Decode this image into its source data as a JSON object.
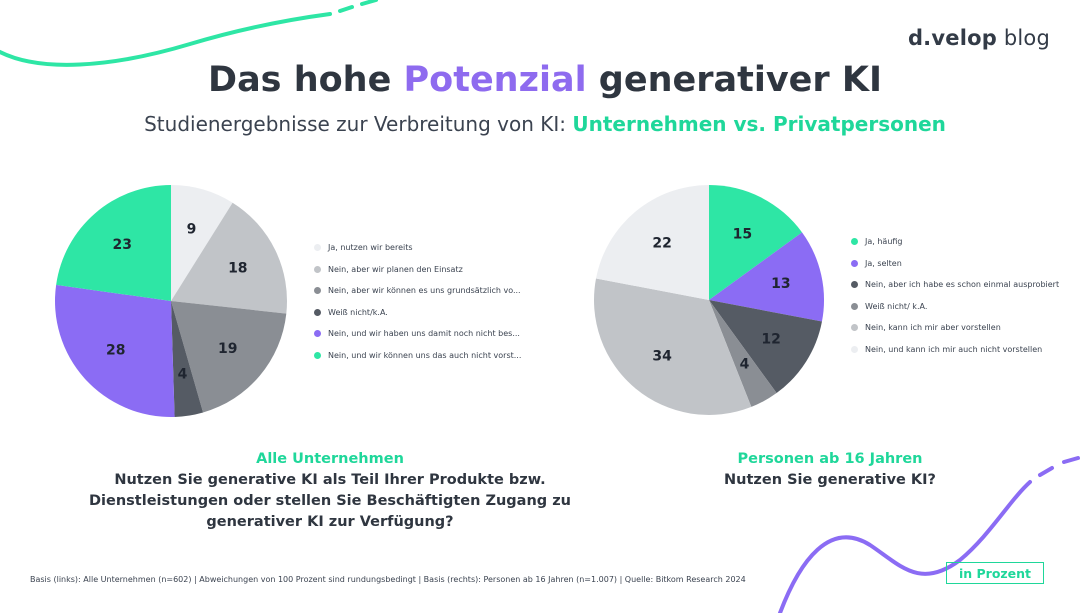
{
  "brand": {
    "name": "d.velop",
    "suffix": "blog"
  },
  "title": {
    "before": "Das hohe ",
    "accent": "Potenzial",
    "after": " generativer KI"
  },
  "subtitle": {
    "before": "Studienergebnisse zur Verbreitung von KI: ",
    "accent": "Unternehmen vs. Privatpersonen"
  },
  "colors": {
    "green": "#2ee6a5",
    "purple": "#8b6cf4",
    "light_gray": "#eceef1",
    "mid_gray": "#c1c4c8",
    "dark_gray": "#8a8e94",
    "charcoal": "#555b64",
    "accent_text": "#1fd79a",
    "title_accent": "#8e6bef"
  },
  "chart_data": [
    {
      "type": "pie",
      "title": "Alle Unternehmen",
      "question": "Nutzen Sie generative KI als Teil Ihrer Produkte bzw. Dienstleistungen oder stellen Sie Beschäftigten Zugang zu generativer KI zur Verfügung?",
      "unit": "in Prozent",
      "slices": [
        {
          "label": "Ja, nutzen wir bereits",
          "value": 9,
          "color": "#eceef1"
        },
        {
          "label": "Nein, aber wir planen den Einsatz",
          "value": 18,
          "color": "#c1c4c8"
        },
        {
          "label": "Nein, aber wir können es uns grundsätzlich vo...",
          "value": 19,
          "color": "#8a8e94"
        },
        {
          "label": "Weiß nicht/k.A.",
          "value": 4,
          "color": "#555b64"
        },
        {
          "label": "Nein, und wir haben uns damit noch nicht bes...",
          "value": 28,
          "color": "#8b6cf4"
        },
        {
          "label": "Nein, und wir können uns das auch nicht vorst...",
          "value": 23,
          "color": "#2ee6a5"
        }
      ],
      "legend_placement": "right"
    },
    {
      "type": "pie",
      "title": "Personen ab 16 Jahren",
      "question": "Nutzen Sie generative KI?",
      "unit": "in Prozent",
      "slices": [
        {
          "label": "Ja, häufig",
          "value": 15,
          "color": "#2ee6a5"
        },
        {
          "label": "Ja, selten",
          "value": 13,
          "color": "#8b6cf4"
        },
        {
          "label": "Nein, aber ich habe es schon einmal ausprobiert",
          "value": 12,
          "color": "#555b64"
        },
        {
          "label": "Weiß nicht/ k.A.",
          "value": 4,
          "color": "#8a8e94"
        },
        {
          "label": "Nein, kann ich mir aber vorstellen",
          "value": 34,
          "color": "#c1c4c8"
        },
        {
          "label": "Nein, und kann ich mir auch nicht vorstellen",
          "value": 22,
          "color": "#eceef1"
        }
      ],
      "legend_placement": "right"
    }
  ],
  "footnote": "Basis (links): Alle Unternehmen (n=602) | Abweichungen von 100 Prozent sind rundungsbedingt | Basis (rechts): Personen ab 16 Jahren (n=1.007) | Quelle: Bitkom Research 2024",
  "badge": "in Prozent"
}
